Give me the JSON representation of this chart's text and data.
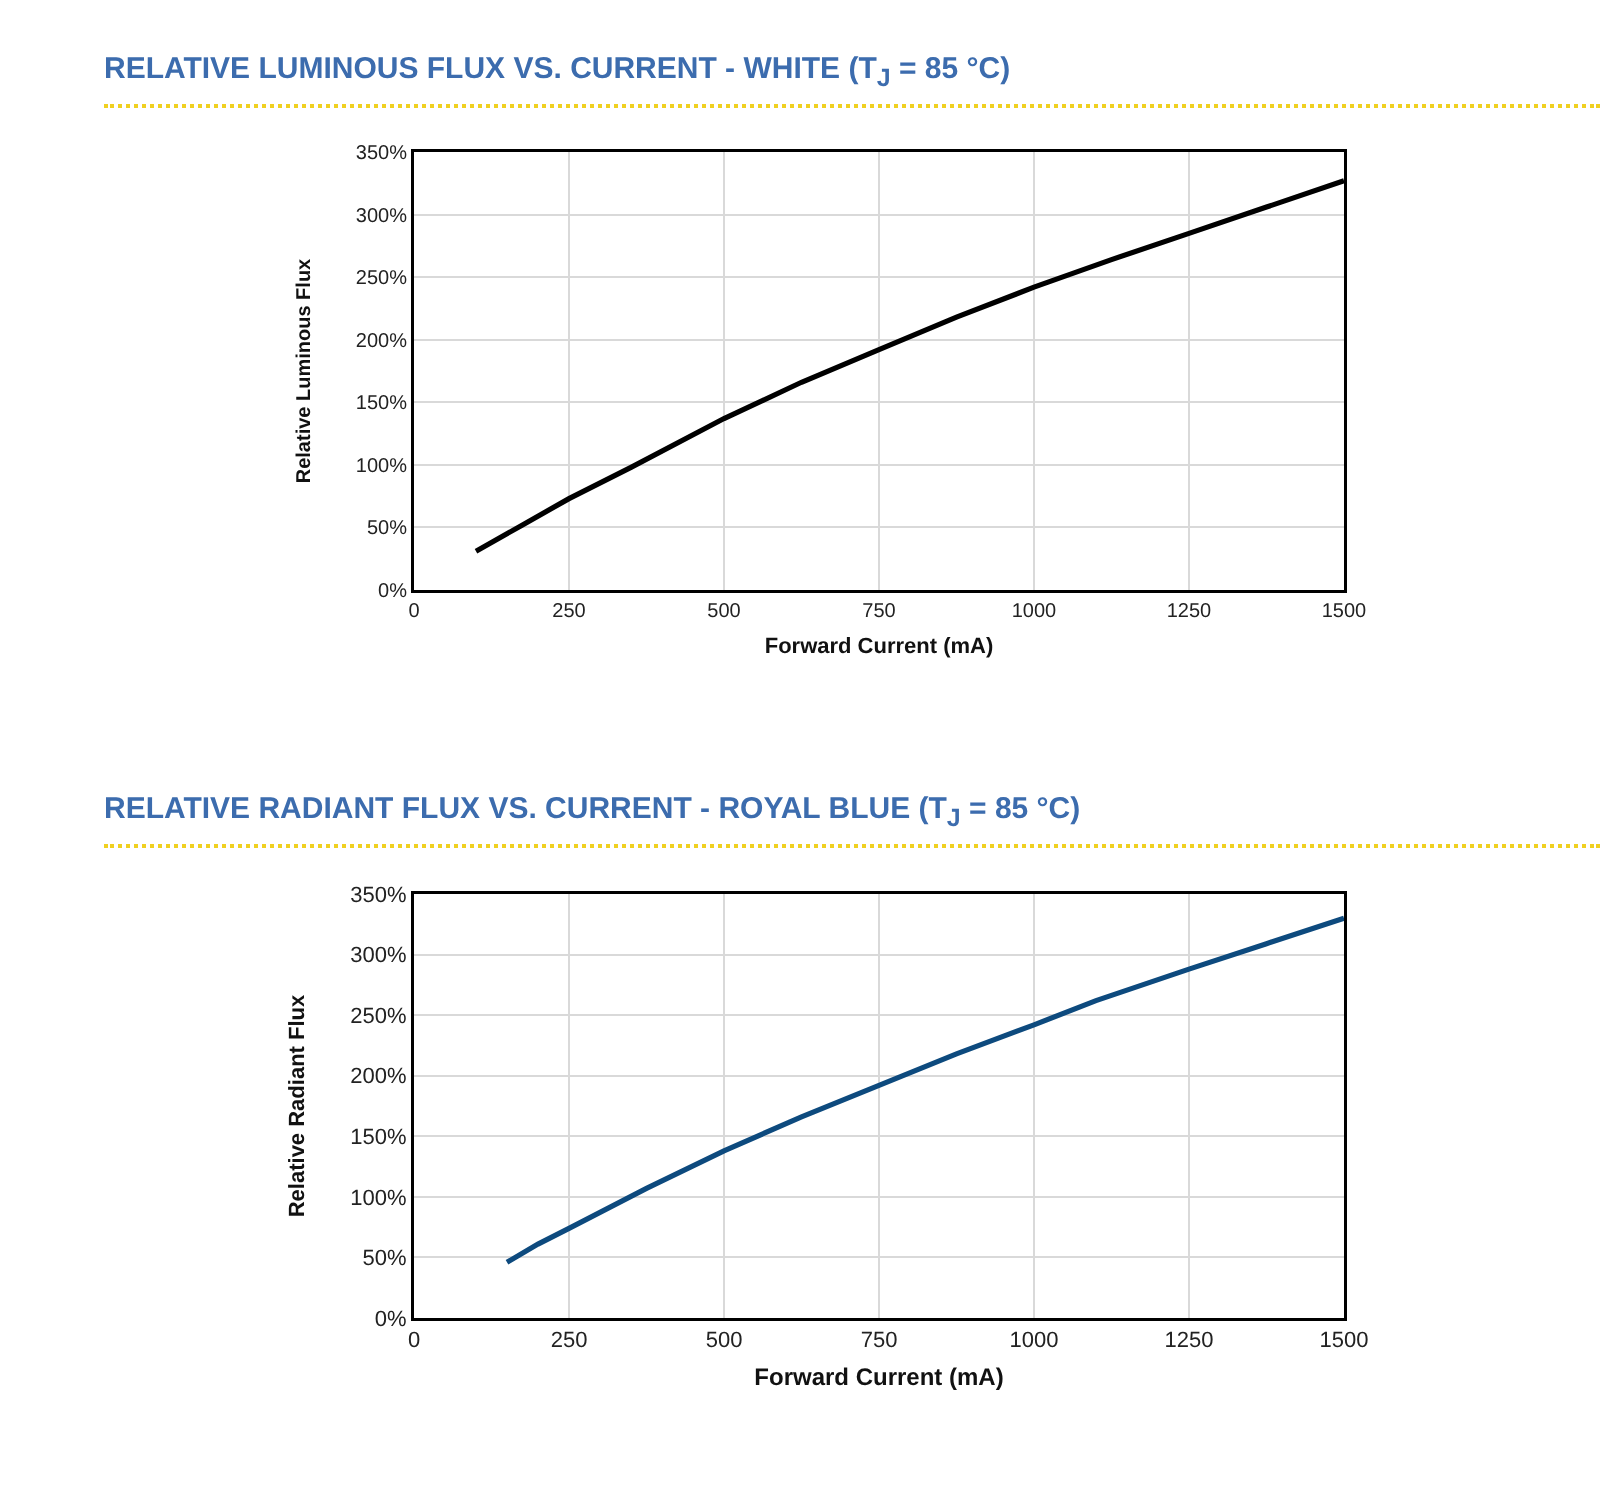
{
  "chart_data": [
    {
      "type": "line",
      "title": "RELATIVE LUMINOUS FLUX VS. CURRENT - WHITE (T$_{J}$ = 85 °C)",
      "xlabel": "Forward Current (mA)",
      "ylabel": "Relative Luminous Flux",
      "series": [
        {
          "color": "#000000",
          "x": [
            100,
            175,
            250,
            350,
            500,
            625,
            750,
            875,
            1000,
            1125,
            1250,
            1375,
            1500
          ],
          "values": [
            31,
            52,
            73,
            98,
            137,
            166,
            192,
            218,
            242,
            264,
            285,
            306,
            327
          ]
        }
      ],
      "xlim": [
        0,
        1500
      ],
      "xticks": [
        0,
        250,
        500,
        750,
        1000,
        1250,
        1500
      ],
      "ylim": [
        0,
        350
      ],
      "yticks": [
        {
          "value": 0,
          "label": "0%"
        },
        {
          "value": 50,
          "label": "50%"
        },
        {
          "value": 100,
          "label": "100%"
        },
        {
          "value": 150,
          "label": "150%"
        },
        {
          "value": 200,
          "label": "200%"
        },
        {
          "value": 250,
          "label": "250%"
        },
        {
          "value": 300,
          "label": "300%"
        },
        {
          "value": 350,
          "label": "350%"
        }
      ],
      "grid": true,
      "legend": false
    },
    {
      "type": "line",
      "title": "RELATIVE RADIANT FLUX VS. CURRENT - ROYAL BLUE (T$_{J}$ = 85 °C)",
      "xlabel": "Forward Current (mA)",
      "ylabel": "Relative Radiant Flux",
      "series": [
        {
          "color": "#0d4a7e",
          "x": [
            150,
            200,
            250,
            375,
            500,
            625,
            750,
            875,
            1000,
            1100,
            1250,
            1375,
            1500
          ],
          "values": [
            46,
            61,
            74,
            107,
            138,
            166,
            192,
            218,
            242,
            262,
            288,
            309,
            330
          ]
        }
      ],
      "xlim": [
        0,
        1500
      ],
      "xticks": [
        0,
        250,
        500,
        750,
        1000,
        1250,
        1500
      ],
      "ylim": [
        0,
        350
      ],
      "yticks": [
        {
          "value": 0,
          "label": "0%"
        },
        {
          "value": 50,
          "label": "50%"
        },
        {
          "value": 100,
          "label": "100%"
        },
        {
          "value": 150,
          "label": "150%"
        },
        {
          "value": 200,
          "label": "200%"
        },
        {
          "value": 250,
          "label": "250%"
        },
        {
          "value": 300,
          "label": "300%"
        },
        {
          "value": 350,
          "label": "350%"
        }
      ],
      "grid": true,
      "legend": false
    }
  ]
}
